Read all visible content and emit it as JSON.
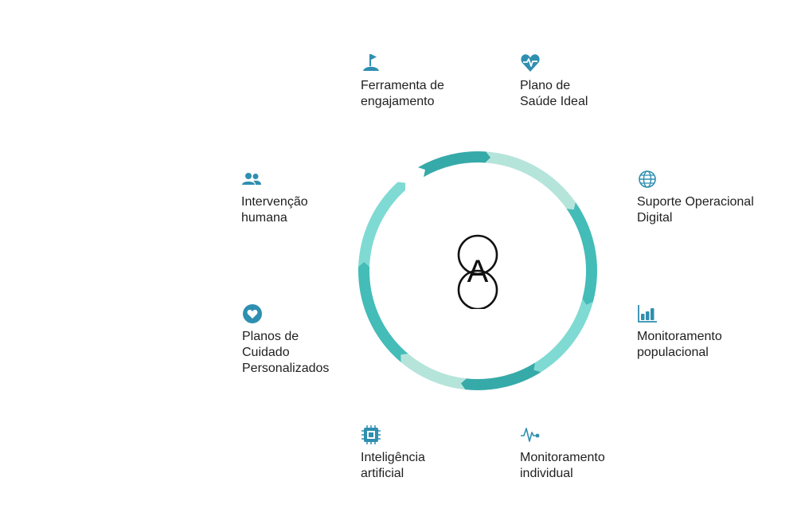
{
  "diagram": {
    "colors": {
      "dark": "#36aaa8",
      "mid": "#44bcb8",
      "light": "#7fdad3",
      "pale": "#b5e4da",
      "icon": "#2f8fb0"
    },
    "items": [
      {
        "id": "engagement",
        "icon": "flag-icon",
        "label": "Ferramenta de\nengajamento"
      },
      {
        "id": "health-plan",
        "icon": "heart-pulse-icon",
        "label": "Plano de\nSaúde Ideal"
      },
      {
        "id": "digital-support",
        "icon": "globe-icon",
        "label": "Suporte Operacional\nDigital"
      },
      {
        "id": "population-monitoring",
        "icon": "bar-chart-icon",
        "label": "Monitoramento\npopulacional"
      },
      {
        "id": "individual-monitoring",
        "icon": "pulse-line-icon",
        "label": "Monitoramento\nindividual"
      },
      {
        "id": "ai",
        "icon": "chip-icon",
        "label": "Inteligência\nartificial"
      },
      {
        "id": "care-plans",
        "icon": "heart-circle-icon",
        "label": "Planos de\nCuidado\nPersonalizados"
      },
      {
        "id": "human",
        "icon": "people-icon",
        "label": "Intervenção\nhumana"
      }
    ],
    "center_logo_letter": "A"
  }
}
